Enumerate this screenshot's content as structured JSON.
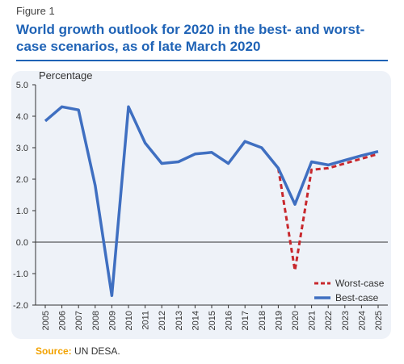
{
  "figure": {
    "label": "Figure 1"
  },
  "title": "World growth outlook for 2020 in the best- and worst-case scenarios, as of late March 2020",
  "source": {
    "label": "Source:",
    "text": "UN DESA."
  },
  "colors": {
    "title": "#1f63b6",
    "best": "#3f6fc1",
    "worst": "#c8282d",
    "accent": "#f2a200"
  },
  "chart_data": {
    "type": "line",
    "ylabel": "Percentage",
    "xlabel": "",
    "ylim": [
      -2.0,
      5.0
    ],
    "yticks": [
      "-2.0",
      "-1.0",
      "0.0",
      "1.0",
      "2.0",
      "3.0",
      "4.0",
      "5.0"
    ],
    "x": [
      "2005",
      "2006",
      "2007",
      "2008",
      "2009",
      "2010",
      "2011",
      "2012",
      "2013",
      "2014",
      "2015",
      "2016",
      "2017",
      "2018",
      "2019",
      "2020",
      "2021",
      "2022",
      "2023",
      "2024",
      "2025"
    ],
    "series": [
      {
        "name": "Best-case",
        "style": "solid",
        "values": [
          3.85,
          4.3,
          4.2,
          1.8,
          -1.7,
          4.3,
          3.15,
          2.5,
          2.55,
          2.8,
          2.85,
          2.5,
          3.2,
          3.0,
          2.35,
          1.2,
          2.55,
          2.45,
          2.6,
          2.75,
          2.88
        ]
      },
      {
        "name": "Worst-case",
        "style": "dashed",
        "values": [
          null,
          null,
          null,
          null,
          null,
          null,
          null,
          null,
          null,
          null,
          null,
          null,
          null,
          null,
          2.35,
          -0.9,
          2.3,
          2.35,
          2.5,
          2.65,
          2.8
        ]
      }
    ],
    "legend": "bottom-right",
    "grid": false
  }
}
